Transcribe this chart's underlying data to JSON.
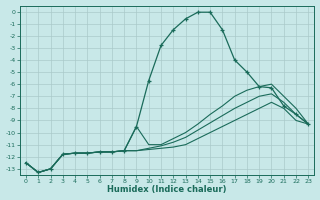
{
  "xlabel": "Humidex (Indice chaleur)",
  "xlim": [
    -0.5,
    23.5
  ],
  "ylim": [
    -13.5,
    0.5
  ],
  "xticks": [
    0,
    1,
    2,
    3,
    4,
    5,
    6,
    7,
    8,
    9,
    10,
    11,
    12,
    13,
    14,
    15,
    16,
    17,
    18,
    19,
    20,
    21,
    22,
    23
  ],
  "yticks": [
    0,
    -1,
    -2,
    -3,
    -4,
    -5,
    -6,
    -7,
    -8,
    -9,
    -10,
    -11,
    -12,
    -13
  ],
  "background_color": "#c8e8e8",
  "grid_color": "#aacaca",
  "line_color": "#1a6b5a",
  "lines": [
    {
      "x": [
        0,
        1,
        2,
        3,
        4,
        5,
        6,
        7,
        8,
        9,
        10,
        11,
        12,
        13,
        14,
        15,
        16,
        17,
        18,
        19,
        20,
        21,
        22,
        23
      ],
      "y": [
        -12.5,
        -13.3,
        -13.0,
        -11.8,
        -11.7,
        -11.7,
        -11.6,
        -11.6,
        -11.5,
        -9.5,
        -5.7,
        -2.8,
        -1.5,
        -0.6,
        -0.05,
        -0.05,
        -1.5,
        -4.0,
        -5.0,
        -6.2,
        -6.3,
        -7.8,
        -8.5,
        -9.3
      ],
      "marker": true
    },
    {
      "x": [
        0,
        1,
        2,
        3,
        4,
        5,
        6,
        7,
        8,
        9,
        10,
        11,
        12,
        13,
        14,
        15,
        16,
        17,
        18,
        19,
        20,
        21,
        22,
        23
      ],
      "y": [
        -12.5,
        -13.3,
        -13.0,
        -11.8,
        -11.7,
        -11.7,
        -11.6,
        -11.6,
        -11.5,
        -11.5,
        -11.4,
        -11.3,
        -11.2,
        -11.0,
        -10.5,
        -10.0,
        -9.5,
        -9.0,
        -8.5,
        -8.0,
        -7.5,
        -8.0,
        -9.0,
        -9.3
      ],
      "marker": false
    },
    {
      "x": [
        0,
        1,
        2,
        3,
        4,
        5,
        6,
        7,
        8,
        9,
        10,
        11,
        12,
        13,
        14,
        15,
        16,
        17,
        18,
        19,
        20,
        21,
        22,
        23
      ],
      "y": [
        -12.5,
        -13.3,
        -13.0,
        -11.8,
        -11.7,
        -11.7,
        -11.6,
        -11.6,
        -11.5,
        -11.5,
        -11.3,
        -11.1,
        -10.8,
        -10.4,
        -9.8,
        -9.2,
        -8.6,
        -8.0,
        -7.5,
        -7.0,
        -6.8,
        -7.5,
        -8.5,
        -9.3
      ],
      "marker": false
    },
    {
      "x": [
        0,
        1,
        2,
        3,
        4,
        5,
        6,
        7,
        8,
        9,
        10,
        11,
        12,
        13,
        14,
        15,
        16,
        17,
        18,
        19,
        20,
        21,
        22,
        23
      ],
      "y": [
        -12.5,
        -13.3,
        -13.0,
        -11.8,
        -11.7,
        -11.7,
        -11.6,
        -11.6,
        -11.5,
        -9.5,
        -11.0,
        -11.0,
        -10.5,
        -10.0,
        -9.3,
        -8.5,
        -7.8,
        -7.0,
        -6.5,
        -6.2,
        -6.0,
        -7.0,
        -8.0,
        -9.3
      ],
      "marker": false
    }
  ]
}
